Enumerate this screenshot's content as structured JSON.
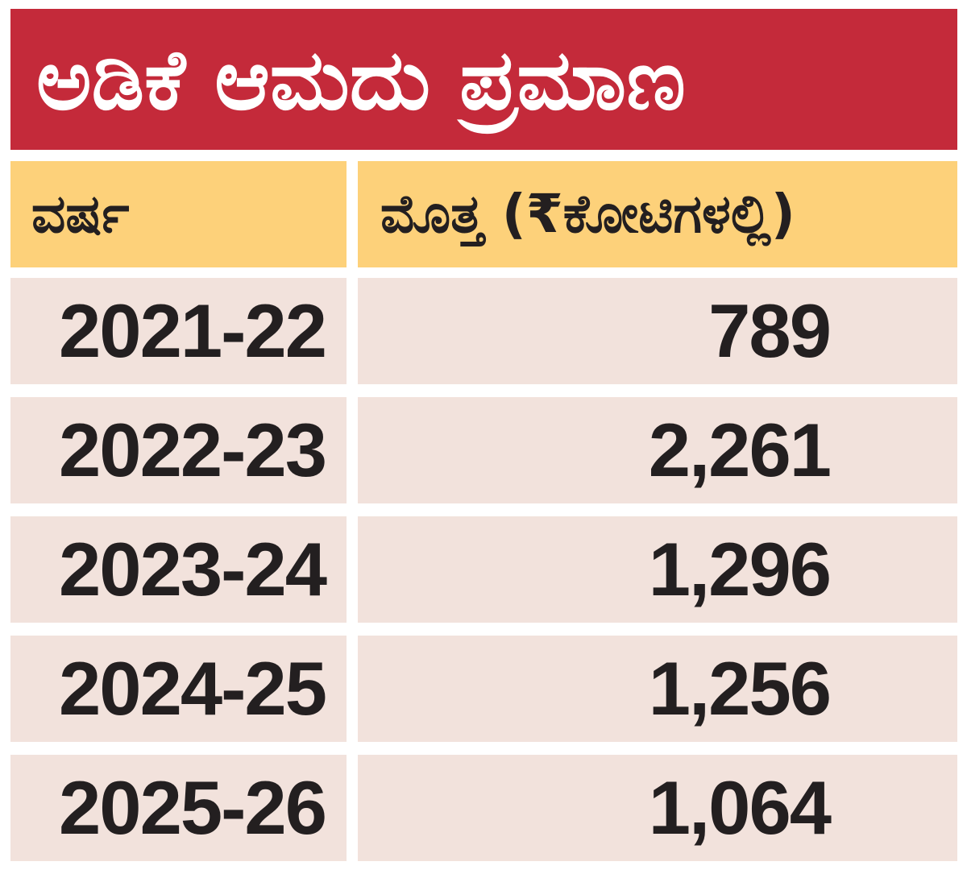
{
  "title": "ಅಡಿಕೆ ಆಮದು ಪ್ರಮಾಣ",
  "colors": {
    "title_bg": "#c42a3a",
    "header_bg": "#fdd17a",
    "row_bg": "#f2e2dc",
    "text": "#231f20"
  },
  "chart_data": {
    "type": "table",
    "title": "ಅಡಿಕೆ ಆಮದು ಪ್ರಮಾಣ",
    "columns": [
      "ವರ್ಷ",
      "ಮೊತ್ತ (₹ಕೋಟಿಗಳಲ್ಲಿ)"
    ],
    "rows": [
      {
        "year": "2021-22",
        "amount": "789"
      },
      {
        "year": "2022-23",
        "amount": "2,261"
      },
      {
        "year": "2023-24",
        "amount": "1,296"
      },
      {
        "year": "2024-25",
        "amount": "1,256"
      },
      {
        "year": "2025-26",
        "amount": "1,064"
      }
    ],
    "x": [
      "2021-22",
      "2022-23",
      "2023-24",
      "2024-25",
      "2025-26"
    ],
    "values": [
      789,
      2261,
      1296,
      1256,
      1064
    ]
  }
}
